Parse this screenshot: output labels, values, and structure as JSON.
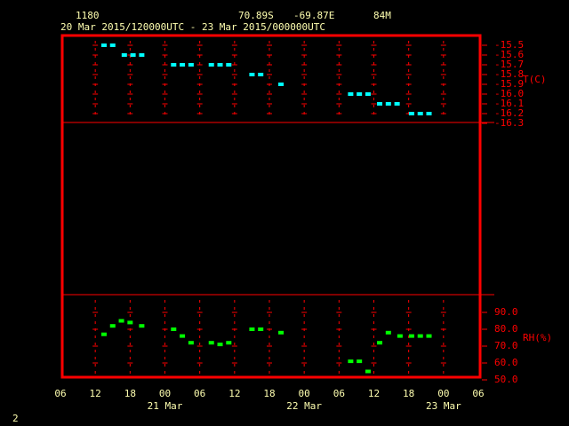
{
  "header": {
    "station": "1180",
    "lat": "70.89S",
    "lon": "-69.87E",
    "elevation": "84M",
    "period": "20 Mar 2015/120000UTC - 23 Mar 2015/000000UTC"
  },
  "footer": "2",
  "chart_data": [
    {
      "type": "scatter",
      "ylabel": "T(C)",
      "color": "#00ffff",
      "x": [
        13.5,
        15,
        17,
        18.5,
        20,
        25.5,
        27,
        28.5,
        32,
        33.5,
        35,
        39,
        40.5,
        44,
        56,
        57.5,
        59,
        61,
        62.5,
        64,
        66.5,
        68,
        69.5
      ],
      "values": [
        -15.5,
        -15.5,
        -15.6,
        -15.6,
        -15.6,
        -15.7,
        -15.7,
        -15.7,
        -15.7,
        -15.7,
        -15.7,
        -15.8,
        -15.8,
        -15.9,
        -16.0,
        -16.0,
        -16.0,
        -16.1,
        -16.1,
        -16.1,
        -16.2,
        -16.2,
        -16.2
      ],
      "xlim": [
        6,
        78
      ],
      "ylim": [
        -16.3,
        -15.5
      ],
      "yticks": [
        -15.5,
        -15.6,
        -15.7,
        -15.8,
        -15.9,
        {
          "value": -16,
          "label": "-16.0"
        },
        -16.1,
        -16.2,
        -16.3
      ]
    },
    {
      "type": "scatter",
      "ylabel": "RH(%)",
      "color": "#00ff00",
      "x": [
        13.5,
        15,
        16.5,
        18,
        20,
        25.5,
        27,
        28.5,
        32,
        33.5,
        35,
        39,
        40.5,
        44,
        56,
        57.5,
        59,
        61,
        62.5,
        64.5,
        66.5,
        68,
        69.5
      ],
      "values": [
        77,
        82,
        85,
        84,
        82,
        80,
        76,
        72,
        72,
        71,
        72,
        80,
        80,
        78,
        61,
        61,
        55,
        72,
        78,
        76,
        76,
        76,
        76
      ],
      "xlim": [
        6,
        78
      ],
      "ylim": [
        50,
        90
      ],
      "yticks": [
        {
          "value": 90,
          "label": "90.0"
        },
        {
          "value": 80,
          "label": "80.0"
        },
        {
          "value": 70,
          "label": "70.0"
        },
        {
          "value": 60,
          "label": "60.0"
        },
        {
          "value": 50,
          "label": "50.0"
        }
      ],
      "xticks": [
        {
          "value": 6,
          "label": "06"
        },
        12,
        18,
        {
          "value": 24,
          "label": "00"
        },
        {
          "value": 30,
          "label": "06"
        },
        {
          "value": 36,
          "label": "12"
        },
        {
          "value": 42,
          "label": "18"
        },
        {
          "value": 48,
          "label": "00"
        },
        {
          "value": 54,
          "label": "06"
        },
        {
          "value": 60,
          "label": "12"
        },
        {
          "value": 66,
          "label": "18"
        },
        {
          "value": 72,
          "label": "00"
        },
        {
          "value": 78,
          "label": "06"
        }
      ],
      "x_day_labels": [
        {
          "value": 24,
          "label": "21 Mar"
        },
        {
          "value": 48,
          "label": "22 Mar"
        },
        {
          "value": 72,
          "label": "23 Mar"
        }
      ]
    }
  ]
}
